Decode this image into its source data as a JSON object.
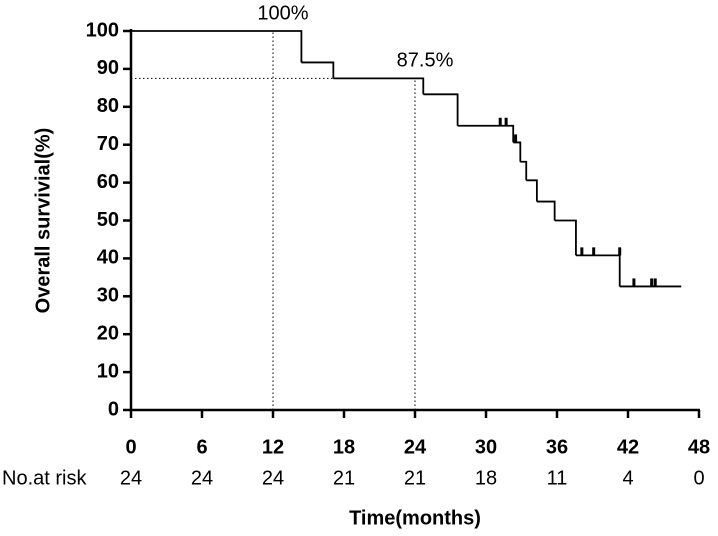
{
  "chart_data": {
    "type": "line",
    "step": true,
    "x_label": "Time(months)",
    "y_label": "Overall survivial(%)",
    "xlim": [
      0,
      48
    ],
    "ylim": [
      0,
      100
    ],
    "xticks": [
      0,
      6,
      12,
      18,
      24,
      30,
      36,
      42,
      48
    ],
    "yticks": [
      0,
      10,
      20,
      30,
      40,
      50,
      60,
      70,
      80,
      90,
      100
    ],
    "series": [
      {
        "color": "#000000",
        "x": [
          0,
          14.4,
          17.1,
          24.7,
          27.6,
          32.3,
          32.9,
          33.4,
          34.3,
          35.8,
          37.6,
          41.3,
          46.5
        ],
        "values": [
          100,
          91.7,
          87.5,
          83.3,
          75,
          70.6,
          65.5,
          60.6,
          55,
          50,
          40.8,
          32.6,
          32.6
        ]
      }
    ],
    "censored": {
      "x": [
        31.2,
        31.7,
        32.5,
        38.1,
        39.1,
        41.3,
        42.5,
        44,
        44.3
      ],
      "values": [
        75,
        75,
        70.6,
        40.8,
        40.8,
        40.8,
        32.6,
        32.6,
        32.6
      ]
    },
    "reference_lines": [
      {
        "x": 12,
        "y": 100,
        "label": "100%"
      },
      {
        "x": 24,
        "y": 87.5,
        "label": "87.5%"
      }
    ],
    "risk_table": {
      "label": "No.at risk",
      "values": [
        24,
        24,
        24,
        21,
        21,
        18,
        11,
        4,
        0
      ]
    }
  }
}
